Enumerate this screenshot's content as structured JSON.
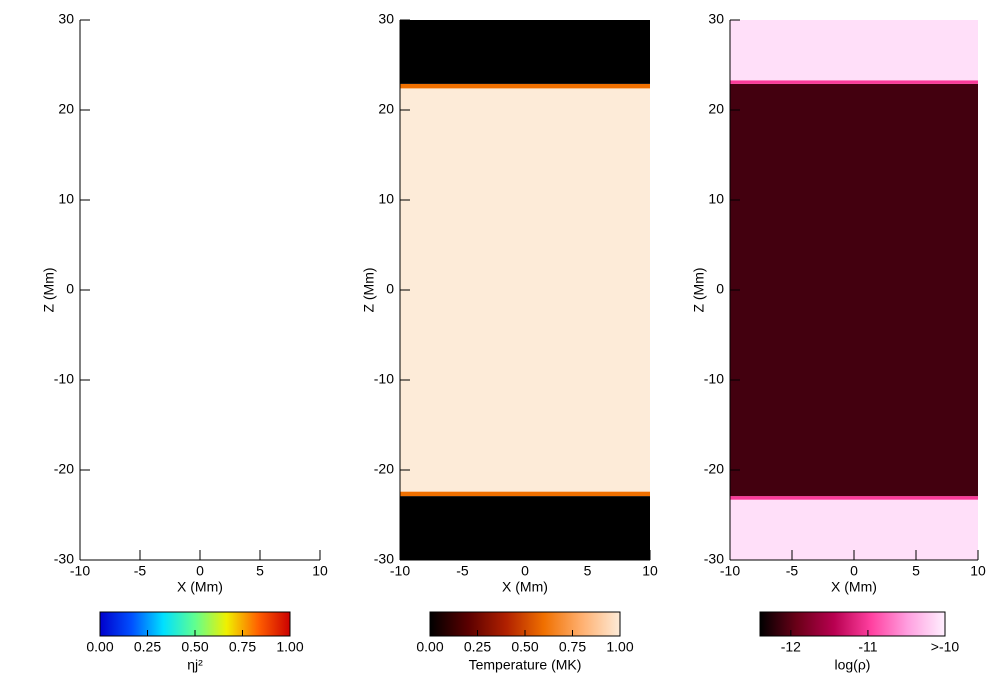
{
  "chart_data": [
    {
      "type": "heatmap",
      "xlabel": "X (Mm)",
      "ylabel": "Z (Mm)",
      "xlim": [
        -10,
        10
      ],
      "ylim": [
        -30,
        30
      ],
      "xticks": [
        -10,
        -5,
        0,
        5,
        10
      ],
      "yticks": [
        -30,
        -20,
        -10,
        0,
        10,
        20,
        30
      ],
      "colorbar": {
        "label": "ηj²",
        "clim": [
          0,
          1
        ],
        "ticks": [
          {
            "value": 0,
            "label": "0.00"
          },
          {
            "value": 0.25,
            "label": "0.25"
          },
          {
            "value": 0.5,
            "label": "0.50"
          },
          {
            "value": 0.75,
            "label": "0.75"
          },
          {
            "value": 1,
            "label": "1.00"
          }
        ],
        "colormap": [
          "#0000cc",
          "#0050ff",
          "#00e0ff",
          "#60ff90",
          "#f0f000",
          "#ff6000",
          "#cc0000"
        ]
      }
    },
    {
      "type": "heatmap",
      "xlabel": "X (Mm)",
      "ylabel": "Z (Mm)",
      "xlim": [
        -10,
        10
      ],
      "ylim": [
        -30,
        30
      ],
      "xticks": [
        -10,
        -5,
        0,
        5,
        10
      ],
      "yticks": [
        -30,
        -20,
        -10,
        0,
        10,
        20,
        30
      ],
      "bands": {
        "z_edges": [
          -30,
          -22.9,
          -22.4,
          22.4,
          22.9,
          30
        ],
        "values": [
          0,
          0.6,
          1,
          0.6,
          0
        ]
      },
      "colorbar": {
        "label": "Temperature (MK)",
        "clim": [
          0,
          1
        ],
        "ticks": [
          {
            "value": 0,
            "label": "0.00"
          },
          {
            "value": 0.25,
            "label": "0.25"
          },
          {
            "value": 0.5,
            "label": "0.50"
          },
          {
            "value": 0.75,
            "label": "0.75"
          },
          {
            "value": 1,
            "label": "1.00"
          }
        ],
        "colormap": [
          "#000000",
          "#5a0000",
          "#b02000",
          "#f07000",
          "#ffb070",
          "#fdebd8"
        ]
      }
    },
    {
      "type": "heatmap",
      "xlabel": "X (Mm)",
      "ylabel": "Z (Mm)",
      "xlim": [
        -10,
        10
      ],
      "ylim": [
        -30,
        30
      ],
      "xticks": [
        -10,
        -5,
        0,
        5,
        10
      ],
      "yticks": [
        -30,
        -20,
        -10,
        0,
        10,
        20,
        30
      ],
      "bands": {
        "z_edges": [
          -30,
          -23.3,
          -22.9,
          22.9,
          23.3,
          30
        ],
        "values": [
          -10.1,
          -11,
          -12.1,
          -11,
          -10.1
        ]
      },
      "colorbar": {
        "label": "log(ρ)",
        "clim": [
          -12.4,
          -10
        ],
        "ticks": [
          -12,
          -11,
          {
            "value": -10,
            "label": ">-10"
          }
        ],
        "colormap": [
          "#000000",
          "#6b0018",
          "#b80050",
          "#ff40a0",
          "#ffa0e0",
          "#fff0ff"
        ]
      }
    }
  ]
}
